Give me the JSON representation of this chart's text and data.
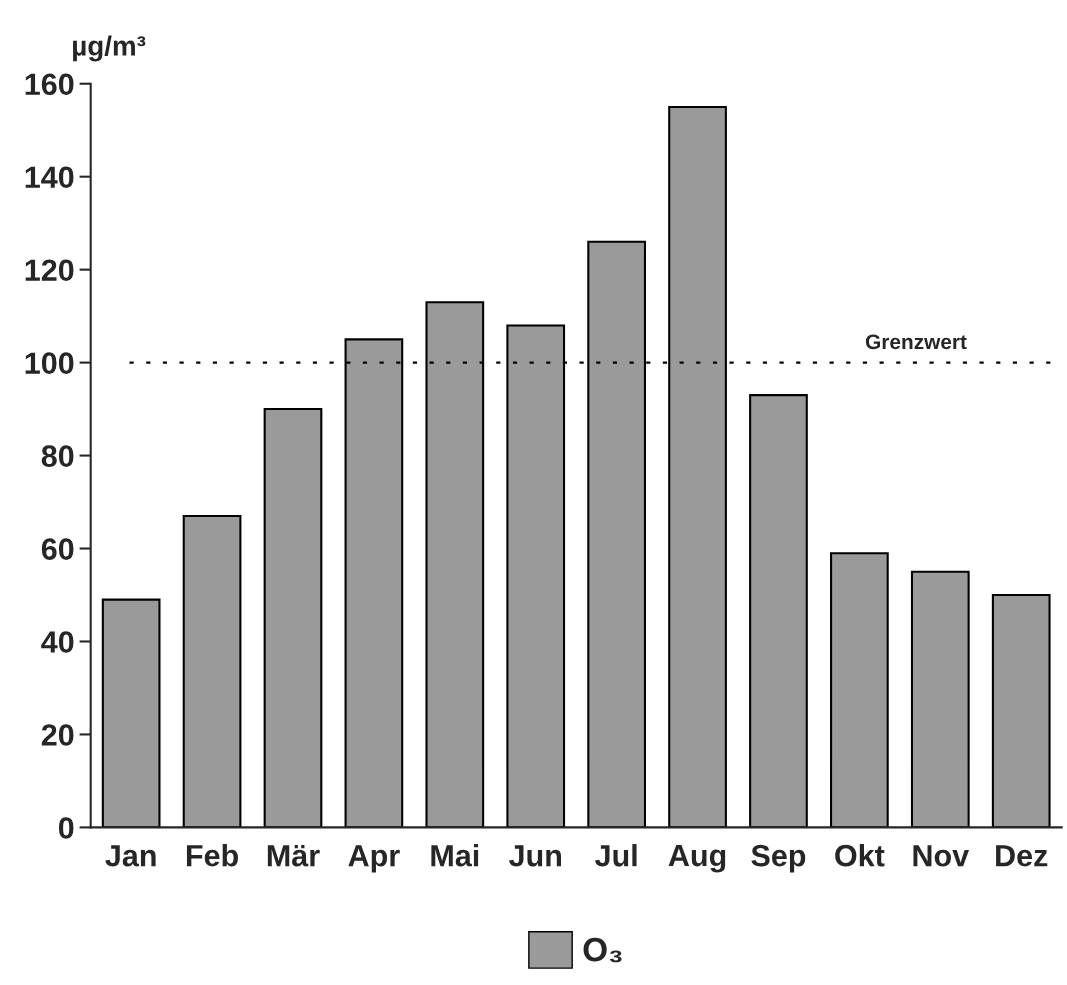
{
  "chart_data": {
    "type": "bar",
    "ylabel": "µg/m³",
    "categories": [
      "Jan",
      "Feb",
      "Mär",
      "Apr",
      "Mai",
      "Jun",
      "Jul",
      "Aug",
      "Sep",
      "Okt",
      "Nov",
      "Dez"
    ],
    "series": [
      {
        "name": "O₃",
        "color": "#9a9a9a",
        "values": [
          49,
          67,
          90,
          105,
          113,
          108,
          126,
          155,
          93,
          59,
          55,
          50
        ]
      }
    ],
    "ylim": [
      0,
      160
    ],
    "yticks": [
      0,
      20,
      40,
      60,
      80,
      100,
      120,
      140,
      160
    ],
    "ref_lines": [
      {
        "axis": "y",
        "value": 100,
        "label": "Grenzwert",
        "line_style": "dotted",
        "color": "#000000"
      }
    ],
    "legend": "bottom",
    "grid": false
  }
}
